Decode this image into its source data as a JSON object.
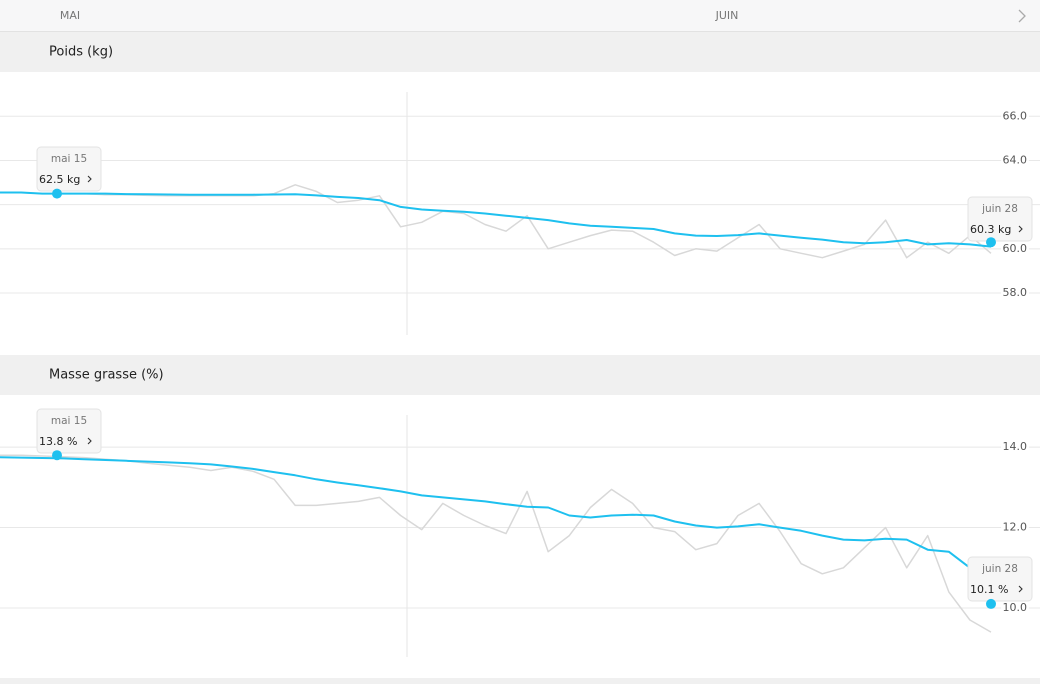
{
  "nav": {
    "months": [
      "MAI",
      "JUIN"
    ]
  },
  "chart_data": [
    {
      "type": "line",
      "title": "Poids (kg)",
      "ylim": [
        56.1,
        67.1
      ],
      "yticks": [
        {
          "value": 58,
          "label": "58.0"
        },
        {
          "value": 60,
          "label": "60.0"
        },
        {
          "value": 62,
          "label": "62.0"
        },
        {
          "value": 64,
          "label": "64.0"
        },
        {
          "value": 66,
          "label": "66.0"
        }
      ],
      "grid": true,
      "series": [
        {
          "color": "#d8d8d8",
          "values": [
            62.55,
            62.55,
            62.5,
            62.5,
            62.5,
            62.45,
            62.45,
            62.42,
            62.4,
            62.4,
            62.4,
            62.4,
            62.4,
            62.5,
            62.9,
            62.6,
            62.1,
            62.2,
            62.4,
            61.0,
            61.2,
            61.7,
            61.6,
            61.1,
            60.8,
            61.5,
            60.0,
            60.3,
            60.6,
            60.85,
            60.8,
            60.3,
            59.7,
            60.0,
            59.9,
            60.5,
            61.1,
            60.0,
            59.8,
            59.6,
            59.9,
            60.2,
            61.3,
            59.6,
            60.3,
            59.8,
            60.6,
            59.8
          ]
        },
        {
          "color": "#1ec0ef",
          "values": [
            62.55,
            62.55,
            62.5,
            62.5,
            62.5,
            62.5,
            62.48,
            62.47,
            62.46,
            62.45,
            62.45,
            62.45,
            62.45,
            62.46,
            62.47,
            62.42,
            62.35,
            62.3,
            62.2,
            61.9,
            61.78,
            61.72,
            61.68,
            61.6,
            61.5,
            61.4,
            61.3,
            61.15,
            61.05,
            61.0,
            60.95,
            60.9,
            60.7,
            60.6,
            60.58,
            60.62,
            60.7,
            60.6,
            60.5,
            60.42,
            60.3,
            60.25,
            60.3,
            60.4,
            60.2,
            60.25,
            60.2,
            60.1
          ]
        }
      ],
      "annotations": [
        {
          "date": "mai 15",
          "value": 62.5,
          "label": "62.5 kg"
        },
        {
          "date": "juin 28",
          "value": 60.3,
          "label": "60.3 kg"
        }
      ]
    },
    {
      "type": "line",
      "title": "Masse grasse (%)",
      "ylim": [
        8.78,
        14.8
      ],
      "yticks": [
        {
          "value": 10,
          "label": "10.0"
        },
        {
          "value": 12,
          "label": "12.0"
        },
        {
          "value": 14,
          "label": "14.0"
        }
      ],
      "grid": true,
      "series": [
        {
          "color": "#d8d8d8",
          "values": [
            13.8,
            13.8,
            13.78,
            13.76,
            13.74,
            13.7,
            13.66,
            13.6,
            13.55,
            13.5,
            13.42,
            13.5,
            13.4,
            13.2,
            12.55,
            12.55,
            12.6,
            12.65,
            12.75,
            12.3,
            11.95,
            12.6,
            12.3,
            12.05,
            11.85,
            12.9,
            11.4,
            11.8,
            12.5,
            12.95,
            12.6,
            12.0,
            11.9,
            11.45,
            11.6,
            12.3,
            12.6,
            11.9,
            11.1,
            10.85,
            11.0,
            11.5,
            12.0,
            11.0,
            11.8,
            10.4,
            9.7,
            9.4
          ]
        },
        {
          "color": "#1ec0ef",
          "values": [
            13.75,
            13.74,
            13.73,
            13.72,
            13.7,
            13.68,
            13.66,
            13.64,
            13.62,
            13.6,
            13.57,
            13.52,
            13.46,
            13.38,
            13.3,
            13.2,
            13.12,
            13.05,
            12.98,
            12.9,
            12.8,
            12.75,
            12.7,
            12.65,
            12.58,
            12.52,
            12.5,
            12.3,
            12.25,
            12.3,
            12.32,
            12.3,
            12.15,
            12.05,
            12.0,
            12.03,
            12.08,
            12.0,
            11.92,
            11.8,
            11.7,
            11.68,
            11.72,
            11.7,
            11.45,
            11.4,
            11.0,
            10.15
          ]
        }
      ],
      "annotations": [
        {
          "date": "mai 15",
          "value": 13.8,
          "label": "13.8 %"
        },
        {
          "date": "juin 28",
          "value": 10.1,
          "label": "10.1 %"
        }
      ]
    }
  ]
}
